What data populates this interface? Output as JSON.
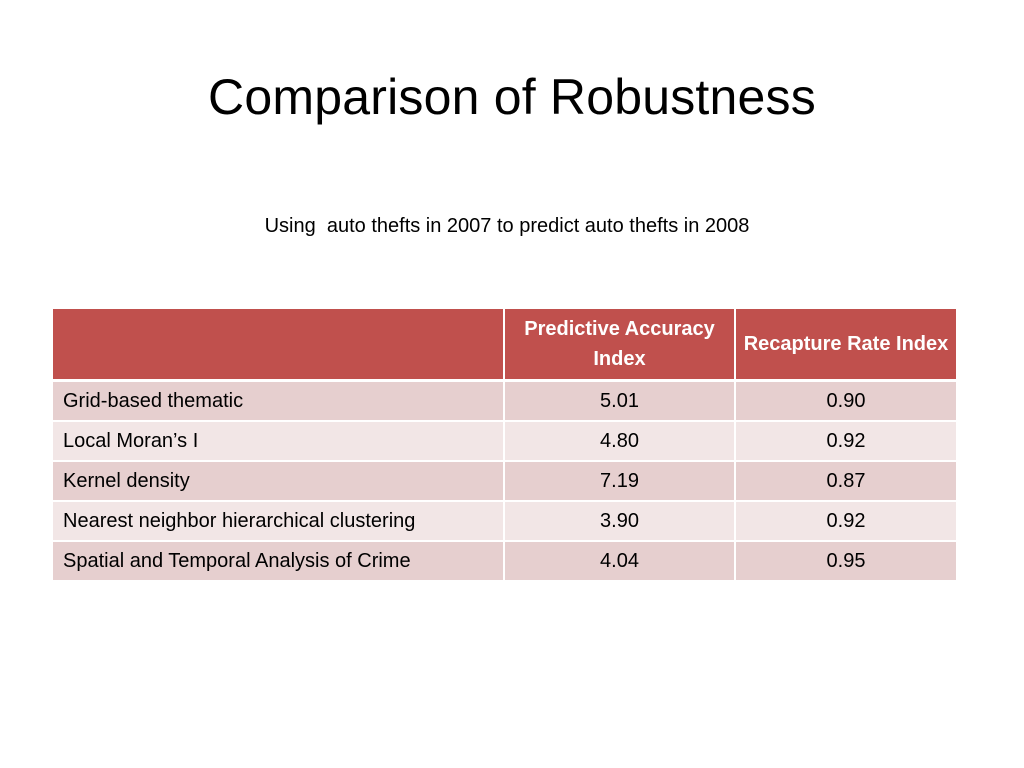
{
  "slide": {
    "title": "Comparison of Robustness",
    "subtitle": "Using  auto thefts in 2007 to predict auto thefts in 2008"
  },
  "table": {
    "headers": [
      "",
      "Predictive Accuracy Index",
      "Recapture Rate Index"
    ],
    "rows": [
      {
        "method": "Grid-based thematic",
        "pai": "5.01",
        "rri": "0.90"
      },
      {
        "method": "Local Moran’s I",
        "pai": "4.80",
        "rri": "0.92"
      },
      {
        "method": "Kernel density",
        "pai": "7.19",
        "rri": "0.87"
      },
      {
        "method": "Nearest neighbor hierarchical clustering",
        "pai": "3.90",
        "rri": "0.92"
      },
      {
        "method": "Spatial and Temporal Analysis of Crime",
        "pai": "4.04",
        "rri": "0.95"
      }
    ]
  },
  "colors": {
    "header_fill": "#c0504d",
    "row_fill_dark": "#e6cfcf",
    "row_fill_light": "#f2e6e6",
    "header_text": "#ffffff"
  }
}
